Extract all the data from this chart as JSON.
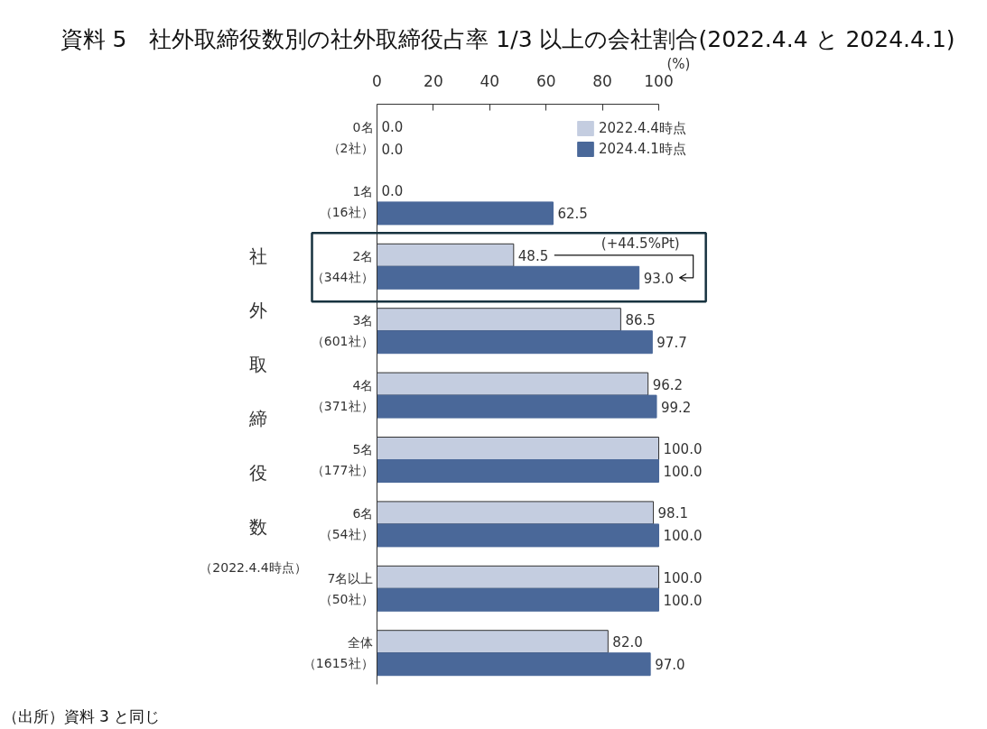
{
  "chart_data": {
    "type": "bar",
    "orientation": "horizontal",
    "title": "資料 5　社外取締役数別の社外取締役占率 1/3 以上の会社割合(2022.4.4 と 2024.4.1)",
    "xlabel": "(%)",
    "ylabel": "社外取締役数（2022.4.4時点）",
    "categories": [
      "0名（2社）",
      "1名（16社）",
      "2名（344社）",
      "3名（601社）",
      "4名（371社）",
      "5名（177社）",
      "6名（54社）",
      "7名以上（50社）",
      "全体（1615社）"
    ],
    "series": [
      {
        "name": "2022.4.4時点",
        "color": "#c4cde0",
        "values": [
          0,
          0,
          48.5,
          86.5,
          96.2,
          100,
          98.1,
          100,
          82.0
        ],
        "value_labels": [
          "0.0",
          "0.0",
          "48.5",
          "86.5",
          "96.2",
          "100.0",
          "98.1",
          "100.0",
          "82.0"
        ]
      },
      {
        "name": "2024.4.1時点",
        "color": "#4a6899",
        "values": [
          0,
          62.5,
          93.0,
          97.7,
          99.2,
          100,
          100,
          100,
          97.0
        ],
        "value_labels": [
          "0.0",
          "62.5",
          "93.0",
          "97.7",
          "99.2",
          "100.0",
          "100.0",
          "100.0",
          "97.0"
        ]
      }
    ],
    "xlim": [
      0,
      100
    ],
    "xticks": [
      0,
      20,
      40,
      60,
      80,
      100
    ],
    "grid": false,
    "legend": "top right",
    "annotations": [
      "（出所）資料 3 と同じ",
      {
        "text": "(+44.5%Pt)",
        "y": "2名（344社）"
      }
    ]
  }
}
